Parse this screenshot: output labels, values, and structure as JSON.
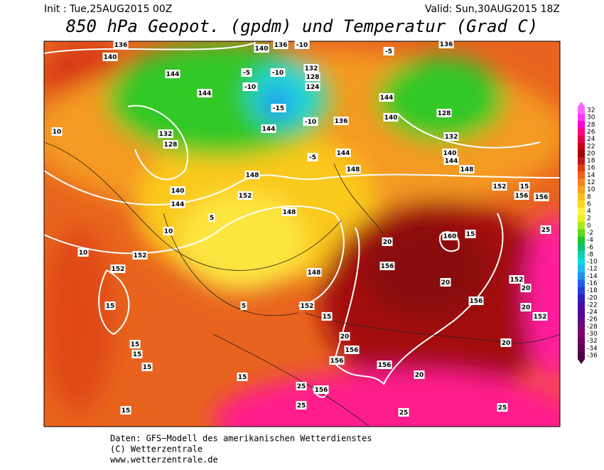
{
  "header": {
    "init": "Init : Tue,25AUG2015 00Z",
    "valid": "Valid: Sun,30AUG2015 18Z",
    "title": "850 hPa Geopot. (gpdm) und Temperatur (Grad C)"
  },
  "colorbar": {
    "ticks": [
      32,
      30,
      28,
      26,
      24,
      22,
      20,
      18,
      16,
      14,
      12,
      10,
      8,
      6,
      4,
      2,
      0,
      -2,
      -4,
      -6,
      -8,
      -10,
      -12,
      -14,
      -16,
      -18,
      -20,
      -22,
      -24,
      -26,
      -28,
      -30,
      -32,
      -34,
      -36
    ],
    "colors": [
      "#ff66ff",
      "#ff33ff",
      "#ff00cc",
      "#ff0080",
      "#e6004c",
      "#c80010",
      "#a00808",
      "#c01818",
      "#e03c10",
      "#f06018",
      "#f58020",
      "#f8a020",
      "#fbbf1e",
      "#fdd820",
      "#fff040",
      "#e8f020",
      "#a8e820",
      "#60d820",
      "#20c830",
      "#10c070",
      "#10d0b0",
      "#10d8e0",
      "#20b8f0",
      "#2090f0",
      "#2060e8",
      "#2040d8",
      "#3020c0",
      "#4010a8",
      "#500898",
      "#600888",
      "#700878",
      "#800070",
      "#700060",
      "#600050",
      "#500040"
    ]
  },
  "map": {
    "labels": [
      "136",
      "140",
      "140",
      "136",
      "-10",
      "-5",
      "136",
      "144",
      "144",
      "-5",
      "-10",
      "-10",
      "132",
      "128",
      "124",
      "-15",
      "-10",
      "144",
      "140",
      "128",
      "144",
      "136",
      "132",
      "140",
      "144",
      "148",
      "-5",
      "144",
      "148",
      "10",
      "132",
      "128",
      "140",
      "144",
      "148",
      "152",
      "148",
      "152",
      "10",
      "10",
      "5",
      "152",
      "15",
      "148",
      "152",
      "5",
      "20",
      "160",
      "15",
      "156",
      "20",
      "156",
      "152",
      "20",
      "20",
      "152",
      "15",
      "20",
      "156",
      "156",
      "156",
      "20",
      "156",
      "25",
      "25",
      "25",
      "25",
      "20",
      "15",
      "15",
      "15",
      "15",
      "15",
      "156",
      "156",
      "25",
      "15",
      "152"
    ]
  },
  "footer": [
    "Daten: GFS−Modell des amerikanischen Wetterdienstes",
    "(C) Wetterzentrale",
    "www.wetterzentrale.de"
  ]
}
